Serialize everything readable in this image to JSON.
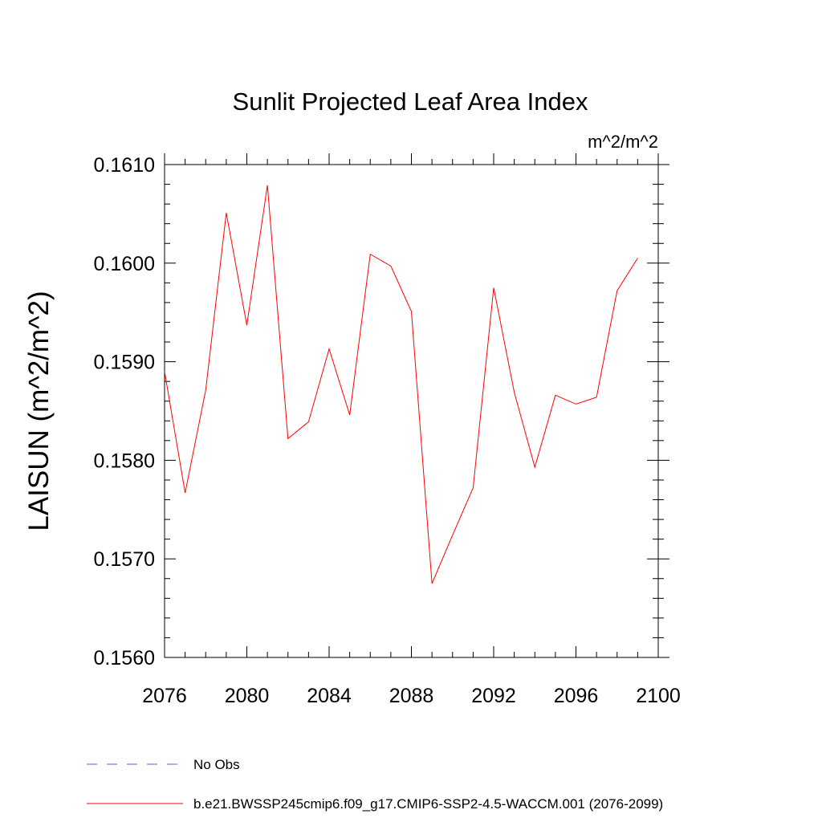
{
  "chart_data": {
    "type": "line",
    "title": "Sunlit Projected Leaf Area Index",
    "units": "m^2/m^2",
    "ylabel": "LAISUN  (m^2/m^2)",
    "xlabel": "",
    "xlim": [
      2076,
      2100
    ],
    "ylim": [
      0.156,
      0.161
    ],
    "x_ticks": [
      "2076",
      "2080",
      "2084",
      "2088",
      "2092",
      "2096",
      "2100"
    ],
    "y_ticks": [
      "0.1560",
      "0.1570",
      "0.1580",
      "0.1590",
      "0.1600",
      "0.1610"
    ],
    "series": [
      {
        "name": "b.e21.BWSSP245cmip6.f09_g17.CMIP6-SSP2-4.5-WACCM.001 (2076-2099)",
        "color": "#ff0000",
        "style": "solid",
        "x": [
          2076,
          2077,
          2078,
          2079,
          2080,
          2081,
          2082,
          2083,
          2084,
          2085,
          2086,
          2087,
          2088,
          2089,
          2090,
          2091,
          2092,
          2093,
          2094,
          2095,
          2096,
          2097,
          2098,
          2099
        ],
        "values": [
          0.1589,
          0.15767,
          0.15871,
          0.16051,
          0.15937,
          0.16079,
          0.15822,
          0.15839,
          0.15913,
          0.15846,
          0.16009,
          0.15997,
          0.15951,
          0.15675,
          0.15724,
          0.15772,
          0.15975,
          0.15869,
          0.15793,
          0.15866,
          0.15857,
          0.15864,
          0.15972,
          0.16005
        ]
      }
    ],
    "legend": [
      {
        "label": "No Obs",
        "color": "#6a5acd",
        "style": "dashed"
      },
      {
        "label": "b.e21.BWSSP245cmip6.f09_g17.CMIP6-SSP2-4.5-WACCM.001 (2076-2099)",
        "color": "#ff0000",
        "style": "solid"
      }
    ]
  }
}
